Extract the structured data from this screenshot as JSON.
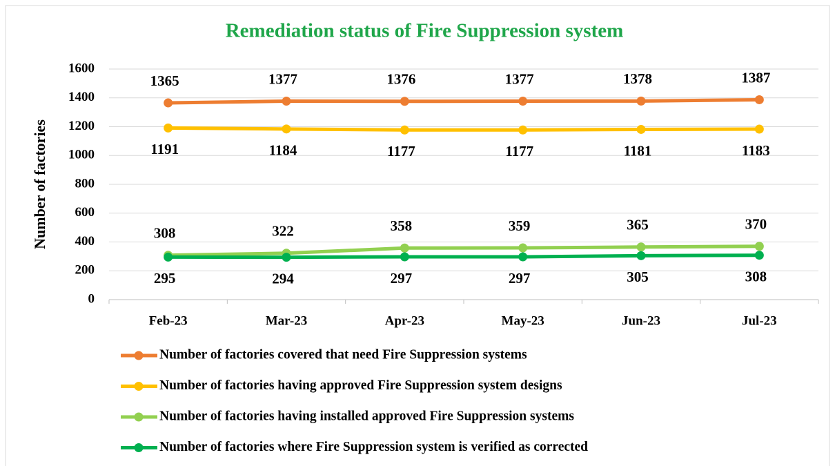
{
  "chart_data": {
    "type": "line",
    "title": "Remediation status of Fire Suppression system",
    "y_label": "Number of factories",
    "categories": [
      "Feb-23",
      "Mar-23",
      "Apr-23",
      "May-23",
      "Jun-23",
      "Jul-23"
    ],
    "series": [
      {
        "name": "Number of factories covered that need Fire Suppression systems",
        "color": "#ed7d31",
        "label_position": "above",
        "values": [
          1365,
          1377,
          1376,
          1377,
          1378,
          1387
        ]
      },
      {
        "name": "Number of factories having approved Fire Suppression system designs",
        "color": "#ffc000",
        "label_position": "below",
        "values": [
          1191,
          1184,
          1177,
          1177,
          1181,
          1183
        ]
      },
      {
        "name": "Number of factories having installed approved Fire Suppression systems",
        "color": "#92d050",
        "label_position": "above",
        "values": [
          308,
          322,
          358,
          359,
          365,
          370
        ]
      },
      {
        "name": "Number of factories where Fire Suppression system is verified as corrected",
        "color": "#00b050",
        "label_position": "below",
        "values": [
          295,
          294,
          297,
          297,
          305,
          308
        ]
      }
    ],
    "ylim": [
      0,
      1600
    ],
    "yticks": [
      0,
      200,
      400,
      600,
      800,
      1000,
      1200,
      1400,
      1600
    ],
    "grid": true,
    "legend": "bottom"
  }
}
